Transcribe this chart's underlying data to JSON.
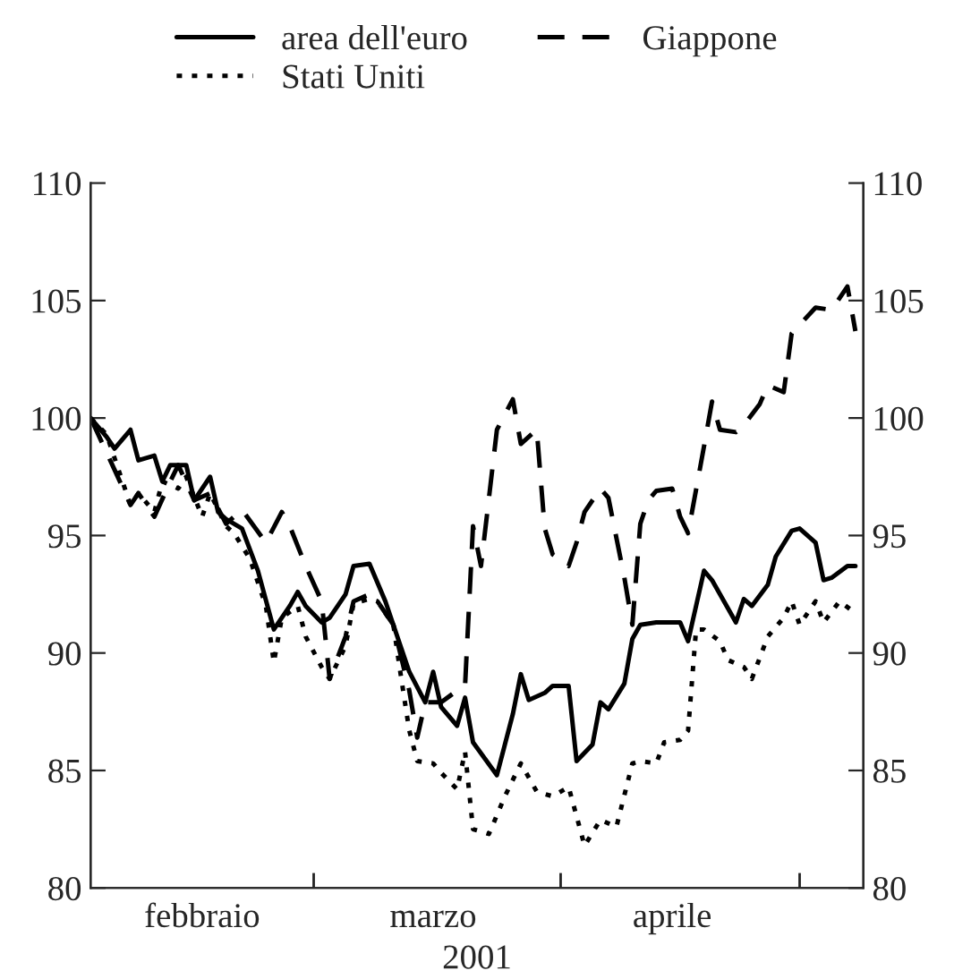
{
  "chart_data": {
    "type": "line",
    "xlabel": "2001",
    "legend": "top",
    "grid": false,
    "xlim": [
      "2001-02-01",
      "2001-05-09"
    ],
    "xticks": [
      {
        "value": "2001-02-15",
        "label": "febbraio"
      },
      {
        "value": "2001-03-01",
        "label": null
      },
      {
        "value": "2001-03-16",
        "label": "marzo"
      },
      {
        "value": "2001-04-01",
        "label": null
      },
      {
        "value": "2001-04-15",
        "label": "aprile"
      },
      {
        "value": "2001-05-01",
        "label": null
      }
    ],
    "ylim": [
      80,
      110
    ],
    "yticks": [
      80,
      85,
      90,
      95,
      100,
      105,
      110
    ],
    "y2lim": [
      80,
      110
    ],
    "y2ticks": [
      80,
      85,
      90,
      95,
      100,
      105,
      110
    ],
    "series": [
      {
        "name": "area dell'euro",
        "color": "#000000",
        "line_style": "solid",
        "x": [
          "2001-02-01",
          "2001-02-03",
          "2001-02-04",
          "2001-02-06",
          "2001-02-07",
          "2001-02-09",
          "2001-02-10",
          "2001-02-11",
          "2001-02-13",
          "2001-02-14",
          "2001-02-16",
          "2001-02-17",
          "2001-02-18",
          "2001-02-20",
          "2001-02-22",
          "2001-02-24",
          "2001-02-26",
          "2001-02-27",
          "2001-02-28",
          "2001-03-02",
          "2001-03-03",
          "2001-03-05",
          "2001-03-06",
          "2001-03-08",
          "2001-03-09",
          "2001-03-10",
          "2001-03-12",
          "2001-03-13",
          "2001-03-15",
          "2001-03-16",
          "2001-03-17",
          "2001-03-19",
          "2001-03-20",
          "2001-03-21",
          "2001-03-24",
          "2001-03-26",
          "2001-03-27",
          "2001-03-28",
          "2001-03-30",
          "2001-03-31",
          "2001-04-02",
          "2001-04-03",
          "2001-04-05",
          "2001-04-06",
          "2001-04-07",
          "2001-04-09",
          "2001-04-10",
          "2001-04-11",
          "2001-04-13",
          "2001-04-16",
          "2001-04-17",
          "2001-04-19",
          "2001-04-20",
          "2001-04-21",
          "2001-04-23",
          "2001-04-24",
          "2001-04-25",
          "2001-04-27",
          "2001-04-28",
          "2001-04-30",
          "2001-05-01",
          "2001-05-03",
          "2001-05-04",
          "2001-05-05",
          "2001-05-07",
          "2001-05-08"
        ],
        "values": [
          100,
          99.2,
          98.7,
          99.5,
          98.2,
          98.4,
          97.3,
          98.0,
          98.0,
          96.5,
          97.5,
          96.0,
          95.7,
          95.3,
          93.5,
          91.0,
          92.0,
          92.6,
          92.0,
          91.3,
          91.5,
          92.5,
          93.7,
          93.8,
          93.0,
          92.2,
          90.2,
          89.2,
          87.9,
          89.2,
          87.7,
          86.9,
          88.1,
          86.2,
          84.8,
          87.4,
          89.1,
          88.0,
          88.3,
          88.6,
          88.6,
          85.4,
          86.1,
          87.9,
          87.6,
          88.7,
          90.6,
          91.2,
          91.3,
          91.3,
          90.5,
          93.5,
          93.1,
          92.5,
          91.3,
          92.3,
          92.0,
          92.9,
          94.1,
          95.2,
          95.3,
          94.7,
          93.1,
          93.2,
          93.7,
          93.7
        ]
      },
      {
        "name": "Giappone",
        "color": "#000000",
        "line_style": "dashed",
        "x": [
          "2001-02-01",
          "2001-02-04",
          "2001-02-06",
          "2001-02-07",
          "2001-02-09",
          "2001-02-11",
          "2001-02-12",
          "2001-02-14",
          "2001-02-16",
          "2001-02-18",
          "2001-02-20",
          "2001-02-23",
          "2001-02-25",
          "2001-02-26",
          "2001-02-28",
          "2001-03-02",
          "2001-03-03",
          "2001-03-05",
          "2001-03-06",
          "2001-03-08",
          "2001-03-09",
          "2001-03-11",
          "2001-03-13",
          "2001-03-14",
          "2001-03-15",
          "2001-03-17",
          "2001-03-19",
          "2001-03-20",
          "2001-03-21",
          "2001-03-22",
          "2001-03-24",
          "2001-03-26",
          "2001-03-27",
          "2001-03-29",
          "2001-03-30",
          "2001-03-31",
          "2001-04-02",
          "2001-04-03",
          "2001-04-04",
          "2001-04-06",
          "2001-04-07",
          "2001-04-09",
          "2001-04-10",
          "2001-04-11",
          "2001-04-12",
          "2001-04-13",
          "2001-04-15",
          "2001-04-16",
          "2001-04-17",
          "2001-04-19",
          "2001-04-20",
          "2001-04-21",
          "2001-04-23",
          "2001-04-24",
          "2001-04-26",
          "2001-04-27",
          "2001-04-29",
          "2001-04-30",
          "2001-05-03",
          "2001-05-05",
          "2001-05-07",
          "2001-05-08"
        ],
        "values": [
          100,
          97.8,
          96.3,
          96.8,
          95.8,
          97.3,
          98.0,
          96.5,
          96.8,
          95.5,
          96.1,
          94.7,
          96.0,
          95.4,
          93.7,
          92.2,
          88.9,
          90.7,
          92.2,
          92.5,
          92.2,
          91.2,
          88.4,
          86.4,
          87.9,
          87.9,
          88.4,
          88.6,
          95.4,
          93.7,
          99.5,
          100.8,
          98.9,
          99.5,
          95.3,
          94.2,
          93.7,
          94.7,
          96.0,
          97.0,
          96.6,
          93.2,
          91.2,
          95.5,
          96.5,
          96.9,
          97.0,
          95.8,
          95.1,
          98.8,
          100.7,
          99.5,
          99.4,
          99.7,
          100.6,
          101.4,
          101.1,
          103.6,
          104.7,
          104.6,
          105.6,
          103.7
        ]
      },
      {
        "name": "Stati Uniti",
        "color": "#000000",
        "line_style": "dotted",
        "x": [
          "2001-02-01",
          "2001-02-03",
          "2001-02-04",
          "2001-02-06",
          "2001-02-07",
          "2001-02-09",
          "2001-02-10",
          "2001-02-12",
          "2001-02-13",
          "2001-02-15",
          "2001-02-16",
          "2001-02-18",
          "2001-02-19",
          "2001-02-21",
          "2001-02-23",
          "2001-02-24",
          "2001-02-25",
          "2001-02-27",
          "2001-02-28",
          "2001-03-02",
          "2001-03-03",
          "2001-03-05",
          "2001-03-06",
          "2001-03-08",
          "2001-03-09",
          "2001-03-11",
          "2001-03-12",
          "2001-03-13",
          "2001-03-14",
          "2001-03-16",
          "2001-03-17",
          "2001-03-19",
          "2001-03-20",
          "2001-03-21",
          "2001-03-23",
          "2001-03-25",
          "2001-03-27",
          "2001-03-29",
          "2001-03-31",
          "2001-04-02",
          "2001-04-04",
          "2001-04-06",
          "2001-04-08",
          "2001-04-10",
          "2001-04-11",
          "2001-04-13",
          "2001-04-14",
          "2001-04-16",
          "2001-04-17",
          "2001-04-18",
          "2001-04-19",
          "2001-04-21",
          "2001-04-22",
          "2001-04-24",
          "2001-04-25",
          "2001-04-27",
          "2001-04-29",
          "2001-04-30",
          "2001-05-01",
          "2001-05-03",
          "2001-05-04",
          "2001-05-06",
          "2001-05-08"
        ],
        "values": [
          100,
          99.3,
          98.3,
          96.3,
          96.8,
          96.0,
          97.3,
          97.0,
          97.5,
          95.8,
          96.8,
          95.4,
          95.1,
          94.0,
          92.0,
          89.6,
          91.5,
          92.0,
          90.7,
          89.4,
          88.9,
          90.3,
          92.1,
          92.3,
          92.2,
          91.2,
          88.9,
          86.7,
          85.4,
          85.3,
          84.9,
          84.2,
          85.8,
          82.5,
          82.3,
          83.9,
          85.3,
          84.1,
          83.9,
          84.3,
          81.8,
          82.9,
          82.6,
          85.3,
          85.4,
          85.3,
          86.2,
          86.3,
          86.7,
          91.0,
          91.0,
          90.5,
          89.7,
          89.4,
          88.9,
          90.7,
          91.5,
          92.2,
          91.2,
          92.2,
          91.3,
          92.2,
          91.7
        ]
      }
    ]
  }
}
